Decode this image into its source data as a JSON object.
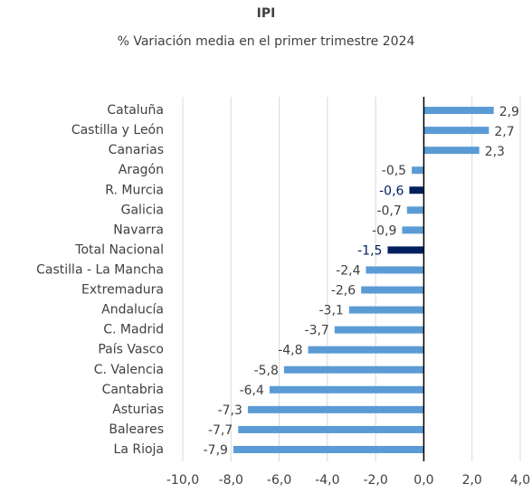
{
  "chart_data": {
    "type": "barh",
    "title": "IPI",
    "subtitle": "% Variación media en el primer trimestre 2024",
    "categories": [
      "Cataluña",
      "Castilla y León",
      "Canarias",
      "Aragón",
      "R. Murcia",
      "Galicia",
      "Navarra",
      "Total Nacional",
      "Castilla - La Mancha",
      "Extremadura",
      "Andalucía",
      "C. Madrid",
      "País Vasco",
      "C. Valencia",
      "Cantabria",
      "Asturias",
      "Baleares",
      "La Rioja"
    ],
    "values": [
      2.9,
      2.7,
      2.3,
      -0.5,
      -0.6,
      -0.7,
      -0.9,
      -1.5,
      -2.4,
      -2.6,
      -3.1,
      -3.7,
      -4.8,
      -5.8,
      -6.4,
      -7.3,
      -7.7,
      -7.9
    ],
    "value_labels": [
      "2,9",
      "2,7",
      "2,3",
      "-0,5",
      "-0,6",
      "-0,7",
      "-0,9",
      "-1,5",
      "-2,4",
      "-2,6",
      "-3,1",
      "-3,7",
      "-4,8",
      "-5,8",
      "-6,4",
      "-7,3",
      "-7,7",
      "-7,9"
    ],
    "colors": [
      "#5b9bd5",
      "#5b9bd5",
      "#5b9bd5",
      "#5b9bd5",
      "#002060",
      "#5b9bd5",
      "#5b9bd5",
      "#002060",
      "#5b9bd5",
      "#5b9bd5",
      "#5b9bd5",
      "#5b9bd5",
      "#5b9bd5",
      "#5b9bd5",
      "#5b9bd5",
      "#5b9bd5",
      "#5b9bd5",
      "#5b9bd5"
    ],
    "xlim": [
      -10,
      4
    ],
    "xticks": [
      {
        "value": -10,
        "label": "-10,0"
      },
      {
        "value": -8,
        "label": "-8,0"
      },
      {
        "value": -6,
        "label": "-6,0"
      },
      {
        "value": -4,
        "label": "-4,0"
      },
      {
        "value": -2,
        "label": "-2,0"
      },
      {
        "value": 0,
        "label": "0,0"
      },
      {
        "value": 2,
        "label": "2,0"
      },
      {
        "value": 4,
        "label": "4,0"
      }
    ],
    "grid": true
  }
}
